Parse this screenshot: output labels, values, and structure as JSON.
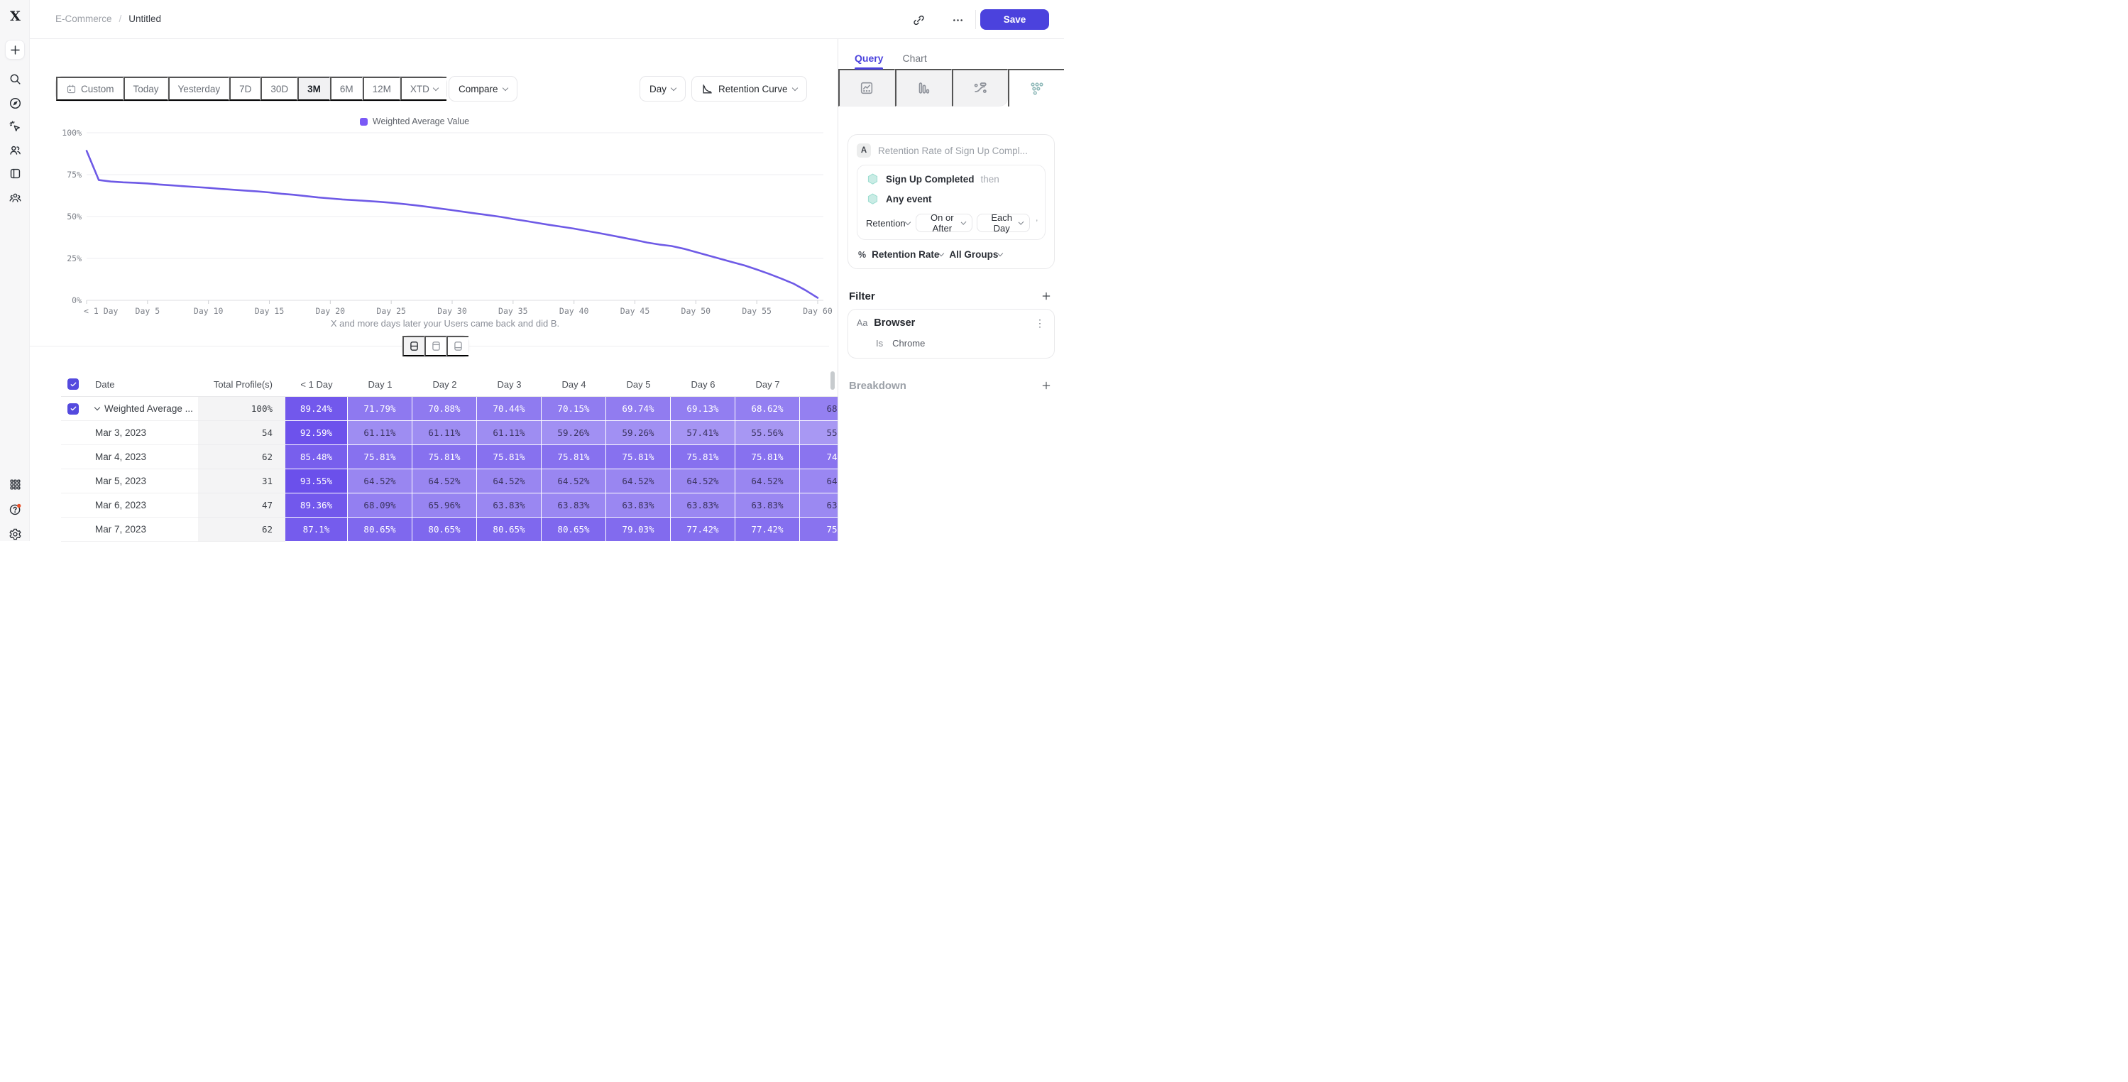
{
  "header": {
    "breadcrumb_section": "E-Commerce",
    "breadcrumb_separator": "/",
    "breadcrumb_page": "Untitled",
    "save_label": "Save",
    "accent_color": "#4b42dd"
  },
  "sidebar": {
    "logo_letter": "X",
    "top_items": [
      {
        "icon": "plus-icon",
        "tile": true
      },
      {
        "icon": "search-icon"
      },
      {
        "icon": "compass-icon"
      },
      {
        "icon": "pointer-sparkle-icon"
      },
      {
        "icon": "users-icon"
      },
      {
        "icon": "notebook-icon"
      },
      {
        "icon": "people-group-icon"
      }
    ],
    "bottom_items": [
      {
        "icon": "apps-grid-icon"
      },
      {
        "icon": "help-icon",
        "notification_dot": "#e8502a"
      },
      {
        "icon": "settings-icon"
      }
    ]
  },
  "toolbar": {
    "ranges": [
      "Custom",
      "Today",
      "Yesterday",
      "7D",
      "30D",
      "3M",
      "6M",
      "12M",
      "XTD"
    ],
    "active_range": "3M",
    "compare_label": "Compare",
    "granularity_label": "Day",
    "chart_type_label": "Retention Curve"
  },
  "chart_data": {
    "type": "line",
    "title": "",
    "legend_label": "Weighted Average Value",
    "legend_position": "top-center",
    "line_color": "#6e5ae6",
    "legend_color": "#7a59f6",
    "grid": true,
    "ylim": [
      0,
      100
    ],
    "yticks": [
      {
        "v": 0,
        "label": "0%"
      },
      {
        "v": 25,
        "label": "25%"
      },
      {
        "v": 50,
        "label": "50%"
      },
      {
        "v": 75,
        "label": "75%"
      },
      {
        "v": 100,
        "label": "100%"
      }
    ],
    "xticks": [
      {
        "x": 0,
        "label": "< 1 Day"
      },
      {
        "x": 5,
        "label": "Day 5"
      },
      {
        "x": 10,
        "label": "Day 10"
      },
      {
        "x": 15,
        "label": "Day 15"
      },
      {
        "x": 20,
        "label": "Day 20"
      },
      {
        "x": 25,
        "label": "Day 25"
      },
      {
        "x": 30,
        "label": "Day 30"
      },
      {
        "x": 35,
        "label": "Day 35"
      },
      {
        "x": 40,
        "label": "Day 40"
      },
      {
        "x": 45,
        "label": "Day 45"
      },
      {
        "x": 50,
        "label": "Day 50"
      },
      {
        "x": 55,
        "label": "Day 55"
      },
      {
        "x": 60,
        "label": "Day 60"
      }
    ],
    "series": [
      {
        "name": "Weighted Average Value",
        "x": [
          0,
          1,
          2,
          3,
          4,
          5,
          6,
          7,
          8,
          9,
          10,
          11,
          12,
          13,
          14,
          15,
          16,
          17,
          18,
          19,
          20,
          21,
          22,
          23,
          24,
          25,
          26,
          27,
          28,
          29,
          30,
          31,
          32,
          33,
          34,
          35,
          36,
          37,
          38,
          39,
          40,
          41,
          42,
          43,
          44,
          45,
          46,
          47,
          48,
          49,
          50,
          51,
          52,
          53,
          54,
          55,
          56,
          57,
          58,
          59,
          60
        ],
        "y": [
          89.24,
          71.79,
          70.88,
          70.44,
          70.15,
          69.74,
          69.13,
          68.62,
          68.1,
          67.6,
          67.1,
          66.5,
          66.0,
          65.5,
          65.0,
          64.4,
          63.6,
          63.0,
          62.2,
          61.4,
          60.8,
          60.2,
          59.8,
          59.3,
          58.8,
          58.2,
          57.5,
          56.7,
          55.8,
          54.8,
          53.8,
          52.8,
          51.8,
          50.8,
          49.8,
          48.5,
          47.4,
          46.2,
          45.0,
          43.9,
          42.8,
          41.5,
          40.2,
          38.8,
          37.4,
          36.0,
          34.5,
          33.3,
          32.4,
          30.8,
          28.8,
          26.8,
          24.8,
          22.8,
          20.8,
          18.4,
          15.8,
          13.0,
          10.0,
          6.0,
          1.5
        ]
      }
    ],
    "caption": "X and more days later your Users came back and did B."
  },
  "view_toggle": {
    "modes": [
      {
        "icon": "split-horizontal-icon",
        "active": true
      },
      {
        "icon": "pane-top-icon",
        "active": false
      },
      {
        "icon": "pane-bottom-icon",
        "active": false
      }
    ]
  },
  "table": {
    "cell_base_rgb": [
      97,
      68,
      234
    ],
    "white_text_threshold": 68.3,
    "columns": [
      "Date",
      "Total Profile(s)",
      "< 1 Day",
      "Day 1",
      "Day 2",
      "Day 3",
      "Day 4",
      "Day 5",
      "Day 6",
      "Day 7",
      ""
    ],
    "rows": [
      {
        "label": "Weighted Average ...",
        "checked": true,
        "expander": true,
        "total": "100%",
        "values": [
          89.24,
          71.79,
          70.88,
          70.44,
          70.15,
          69.74,
          69.13,
          68.62
        ],
        "partial_value": "68"
      },
      {
        "label": "Mar 3, 2023",
        "total": "54",
        "values": [
          92.59,
          61.11,
          61.11,
          61.11,
          59.26,
          59.26,
          57.41,
          55.56
        ],
        "partial_value": "55"
      },
      {
        "label": "Mar 4, 2023",
        "total": "62",
        "values": [
          85.48,
          75.81,
          75.81,
          75.81,
          75.81,
          75.81,
          75.81,
          75.81
        ],
        "partial_value": "74"
      },
      {
        "label": "Mar 5, 2023",
        "total": "31",
        "values": [
          93.55,
          64.52,
          64.52,
          64.52,
          64.52,
          64.52,
          64.52,
          64.52
        ],
        "partial_value": "64"
      },
      {
        "label": "Mar 6, 2023",
        "total": "47",
        "values": [
          89.36,
          68.09,
          65.96,
          63.83,
          63.83,
          63.83,
          63.83,
          63.83
        ],
        "partial_value": "63"
      },
      {
        "label": "Mar 7, 2023",
        "total": "62",
        "values": [
          87.1,
          80.65,
          80.65,
          80.65,
          80.65,
          79.03,
          77.42,
          77.42
        ],
        "partial_value": "75"
      }
    ]
  },
  "panel": {
    "tabs": [
      {
        "label": "Query",
        "active": true
      },
      {
        "label": "Chart",
        "active": false
      }
    ],
    "chart_type_tiles": [
      {
        "icon": "line-chart-icon",
        "active": false
      },
      {
        "icon": "bar-chart-icon",
        "active": false
      },
      {
        "icon": "flow-chart-icon",
        "active": false
      },
      {
        "icon": "retention-grid-icon",
        "active": true
      }
    ],
    "query": {
      "badge": "A",
      "title": "Retention Rate of Sign Up Compl...",
      "event_a": "Sign Up Completed",
      "then_label": "then",
      "event_b": "Any event",
      "retention_label": "Retention",
      "window_label": "On or After",
      "interval_label": "Each Day",
      "metric_symbol": "%",
      "metric_label": "Retention Rate",
      "groups_label": "All Groups"
    },
    "filter": {
      "heading": "Filter",
      "type_badge": "Aa",
      "property": "Browser",
      "operator": "Is",
      "value": "Chrome"
    },
    "breakdown": {
      "heading": "Breakdown"
    }
  }
}
